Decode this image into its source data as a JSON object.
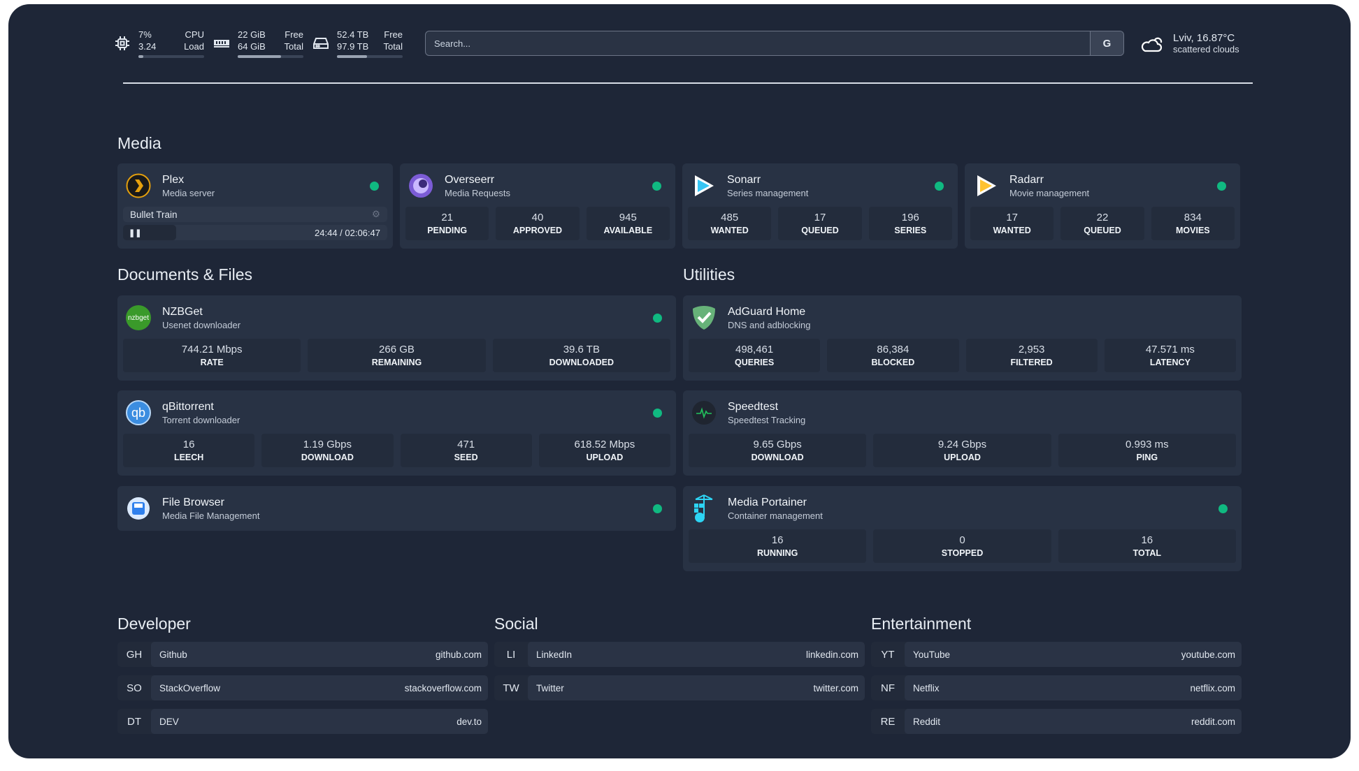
{
  "header": {
    "cpu": {
      "icon": "cpu-icon",
      "value1": "7%",
      "value2": "3.24",
      "label1": "CPU",
      "label2": "Load",
      "percent": 7
    },
    "memory": {
      "icon": "memory-icon",
      "value1": "22 GiB",
      "value2": "64 GiB",
      "label1": "Free",
      "label2": "Total",
      "percent": 66
    },
    "disk": {
      "icon": "disk-icon",
      "value1": "52.4 TB",
      "value2": "97.9 TB",
      "label1": "Free",
      "label2": "Total",
      "percent": 46
    },
    "search": {
      "placeholder": "Search...",
      "button": "G"
    },
    "weather": {
      "icon": "cloud-icon",
      "location": "Lviv, 16.87°C",
      "condition": "scattered clouds"
    }
  },
  "media": {
    "title": "Media",
    "cards": [
      {
        "name": "Plex",
        "sub": "Media server",
        "status": "online",
        "now_playing": {
          "title": "Bullet Train",
          "time": "24:44 / 02:06:47",
          "progress": 19.5
        }
      },
      {
        "name": "Overseerr",
        "sub": "Media Requests",
        "stats": [
          {
            "v": "21",
            "l": "PENDING"
          },
          {
            "v": "40",
            "l": "APPROVED"
          },
          {
            "v": "945",
            "l": "AVAILABLE"
          }
        ]
      },
      {
        "name": "Sonarr",
        "sub": "Series management",
        "stats": [
          {
            "v": "485",
            "l": "WANTED"
          },
          {
            "v": "17",
            "l": "QUEUED"
          },
          {
            "v": "196",
            "l": "SERIES"
          }
        ]
      },
      {
        "name": "Radarr",
        "sub": "Movie management",
        "stats": [
          {
            "v": "17",
            "l": "WANTED"
          },
          {
            "v": "22",
            "l": "QUEUED"
          },
          {
            "v": "834",
            "l": "MOVIES"
          }
        ]
      }
    ]
  },
  "docs": {
    "title": "Documents & Files",
    "cards": [
      {
        "name": "NZBGet",
        "sub": "Usenet downloader",
        "icon_text": "nzbget",
        "stats": [
          {
            "v": "744.21 Mbps",
            "l": "RATE"
          },
          {
            "v": "266 GB",
            "l": "REMAINING"
          },
          {
            "v": "39.6 TB",
            "l": "DOWNLOADED"
          }
        ]
      },
      {
        "name": "qBittorrent",
        "sub": "Torrent downloader",
        "icon_text": "qb",
        "stats": [
          {
            "v": "16",
            "l": "LEECH"
          },
          {
            "v": "1.19 Gbps",
            "l": "DOWNLOAD"
          },
          {
            "v": "471",
            "l": "SEED"
          },
          {
            "v": "618.52 Mbps",
            "l": "UPLOAD"
          }
        ]
      },
      {
        "name": "File Browser",
        "sub": "Media File Management"
      }
    ]
  },
  "utilities": {
    "title": "Utilities",
    "cards": [
      {
        "name": "AdGuard Home",
        "sub": "DNS and adblocking",
        "stats": [
          {
            "v": "498,461",
            "l": "QUERIES"
          },
          {
            "v": "86,384",
            "l": "BLOCKED"
          },
          {
            "v": "2,953",
            "l": "FILTERED"
          },
          {
            "v": "47.571 ms",
            "l": "LATENCY"
          }
        ]
      },
      {
        "name": "Speedtest",
        "sub": "Speedtest Tracking",
        "stats": [
          {
            "v": "9.65 Gbps",
            "l": "DOWNLOAD"
          },
          {
            "v": "9.24 Gbps",
            "l": "UPLOAD"
          },
          {
            "v": "0.993 ms",
            "l": "PING"
          }
        ]
      },
      {
        "name": "Media Portainer",
        "sub": "Container management",
        "stats": [
          {
            "v": "16",
            "l": "RUNNING"
          },
          {
            "v": "0",
            "l": "STOPPED"
          },
          {
            "v": "16",
            "l": "TOTAL"
          }
        ]
      }
    ]
  },
  "bookmarks": [
    {
      "title": "Developer",
      "items": [
        {
          "abbr": "GH",
          "name": "Github",
          "url": "github.com"
        },
        {
          "abbr": "SO",
          "name": "StackOverflow",
          "url": "stackoverflow.com"
        },
        {
          "abbr": "DT",
          "name": "DEV",
          "url": "dev.to"
        }
      ]
    },
    {
      "title": "Social",
      "items": [
        {
          "abbr": "LI",
          "name": "LinkedIn",
          "url": "linkedin.com"
        },
        {
          "abbr": "TW",
          "name": "Twitter",
          "url": "twitter.com"
        }
      ]
    },
    {
      "title": "Entertainment",
      "items": [
        {
          "abbr": "YT",
          "name": "YouTube",
          "url": "youtube.com"
        },
        {
          "abbr": "NF",
          "name": "Netflix",
          "url": "netflix.com"
        },
        {
          "abbr": "RE",
          "name": "Reddit",
          "url": "reddit.com"
        }
      ]
    }
  ],
  "colors": {
    "background": "#1e2637",
    "card": "#283244",
    "status_online": "#10b981"
  }
}
